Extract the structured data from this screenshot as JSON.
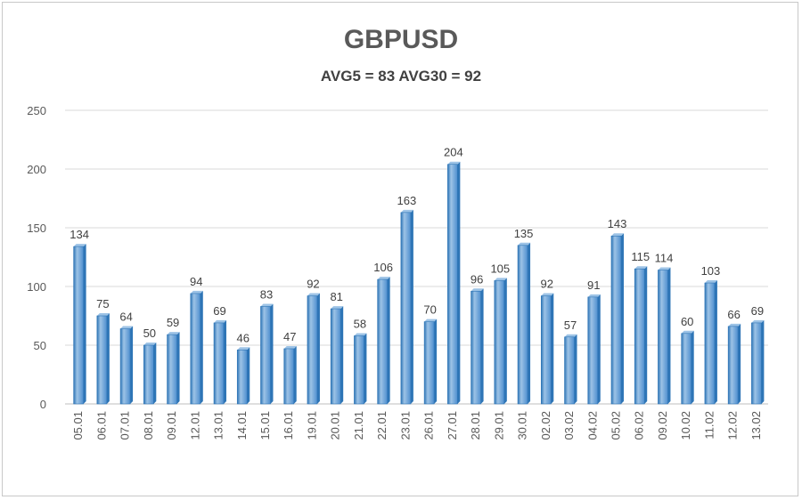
{
  "chart_data": {
    "type": "bar",
    "title": "GBPUSD",
    "subtitle": "AVG5 = 83 AVG30 = 92",
    "xlabel": "",
    "ylabel": "",
    "ylim": [
      0,
      250
    ],
    "yticks": [
      0,
      50,
      100,
      150,
      200,
      250
    ],
    "grid": true,
    "categories": [
      "05.01",
      "06.01",
      "07.01",
      "08.01",
      "09.01",
      "12.01",
      "13.01",
      "14.01",
      "15.01",
      "16.01",
      "19.01",
      "20.01",
      "21.01",
      "22.01",
      "23.01",
      "26.01",
      "27.01",
      "28.01",
      "29.01",
      "30.01",
      "02.02",
      "03.02",
      "04.02",
      "05.02",
      "06.02",
      "09.02",
      "10.02",
      "11.02",
      "12.02",
      "13.02"
    ],
    "values": [
      134,
      75,
      64,
      50,
      59,
      94,
      69,
      46,
      83,
      47,
      92,
      81,
      58,
      106,
      163,
      70,
      204,
      96,
      105,
      135,
      92,
      57,
      91,
      143,
      115,
      114,
      60,
      103,
      66,
      69
    ],
    "colors": {
      "bar_light": "#9dc3e6",
      "bar_mid": "#5b9bd5",
      "bar_dark": "#2e75b6",
      "grid": "#d9d9d9",
      "axis": "#bfbfbf"
    }
  }
}
